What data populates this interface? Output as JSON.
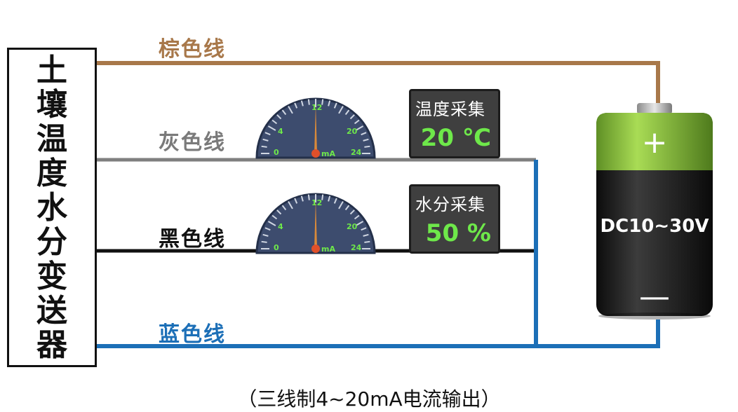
{
  "sensor": {
    "name": "土壤温度水分变送器"
  },
  "wires": {
    "brown": "棕色线",
    "gray": "灰色线",
    "black": "黑色线",
    "blue": "蓝色线"
  },
  "gauges": [
    {
      "ticks": [
        "0",
        "4",
        "12",
        "20",
        "24"
      ],
      "unit": "mA",
      "reading": 12
    },
    {
      "ticks": [
        "0",
        "4",
        "12",
        "20",
        "24"
      ],
      "unit": "mA",
      "reading": 12
    }
  ],
  "displays": {
    "temperature": {
      "title": "温度采集",
      "value": "20 ℃"
    },
    "moisture": {
      "title": "水分采集",
      "value": "50 %"
    }
  },
  "battery": {
    "positive": "+",
    "voltage": "DC10~30V",
    "negative": "—"
  },
  "caption": "（三线制4~20mA电流输出）",
  "colors": {
    "brown": "#a8784a",
    "gray": "#7f7f7f",
    "black": "#111111",
    "blue": "#1c6fb7",
    "gauge_face": "#3d4c6e",
    "readout_text": "#6ee84a",
    "battery_top": "#8cc63f"
  }
}
